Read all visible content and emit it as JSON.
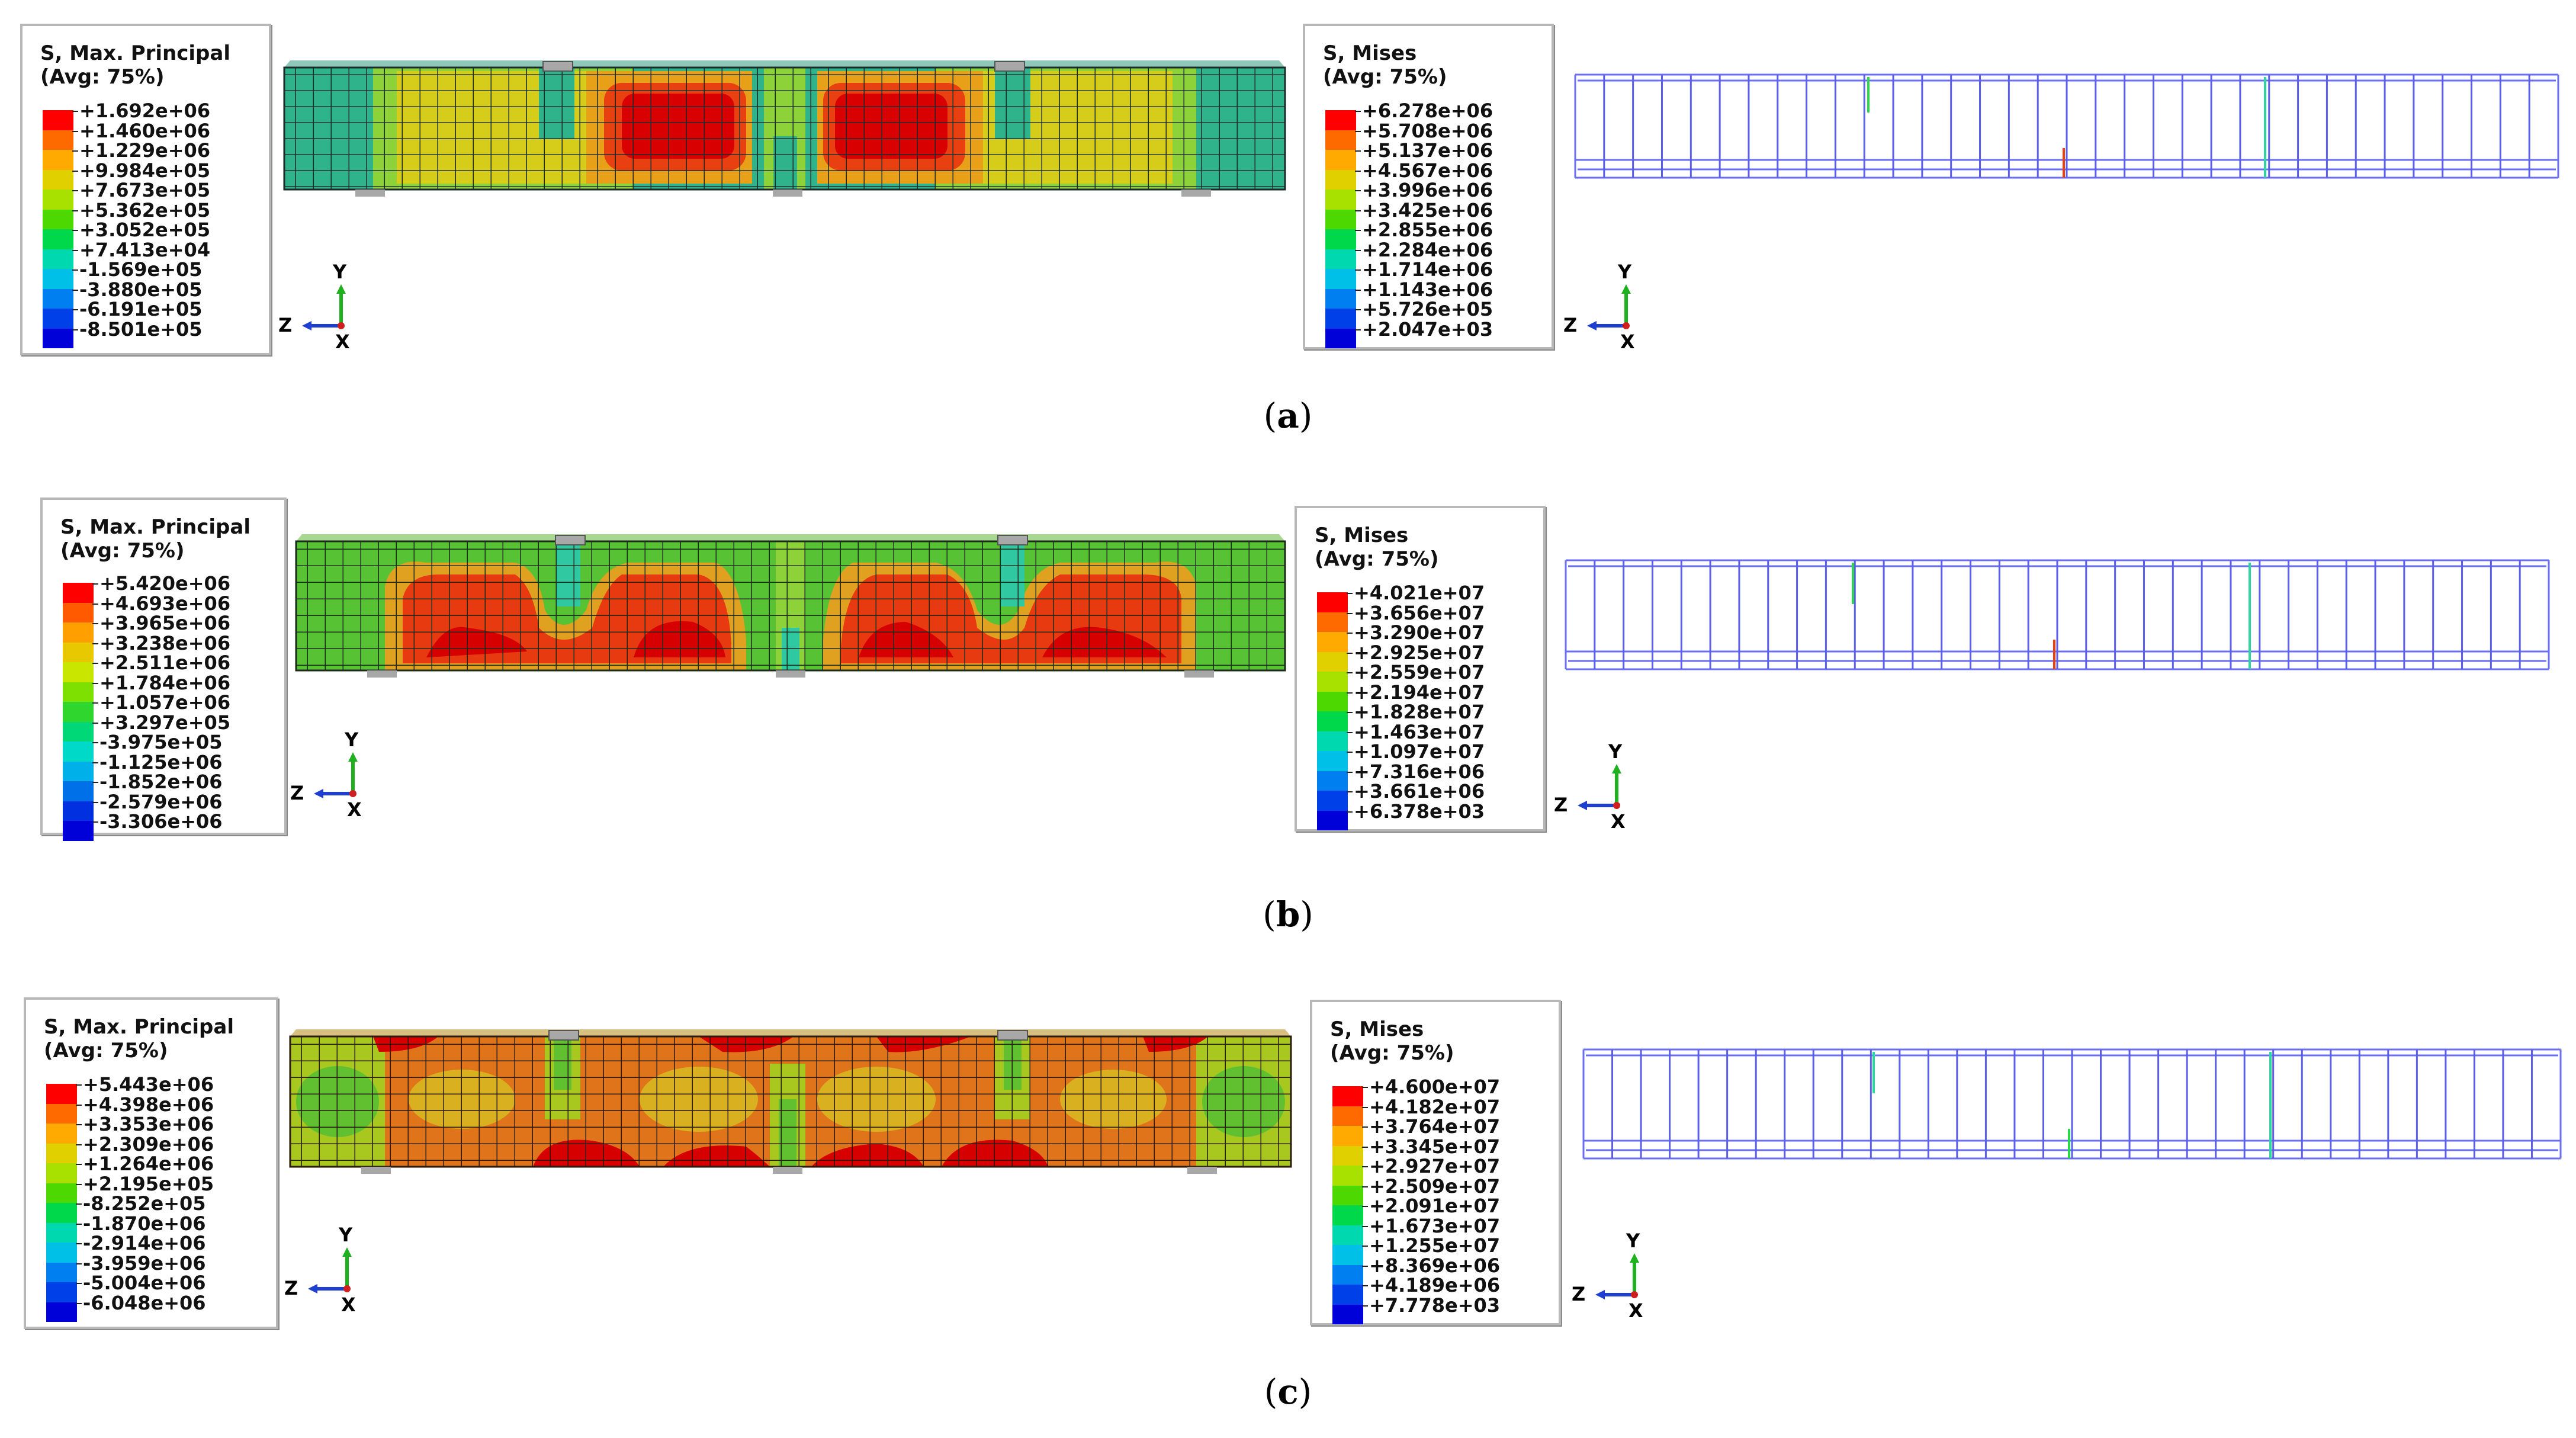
{
  "panels": [
    {
      "caption_letter": "a",
      "left_legend": {
        "title": "S, Max. Principal",
        "subtitle": "(Avg: 75%)",
        "values": [
          "+1.692e+06",
          "+1.460e+06",
          "+1.229e+06",
          "+9.984e+05",
          "+7.673e+05",
          "+5.362e+05",
          "+3.052e+05",
          "+7.413e+04",
          "-1.569e+05",
          "-3.880e+05",
          "-6.191e+05",
          "-8.501e+05"
        ]
      },
      "right_legend": {
        "title": "S, Mises",
        "subtitle": "(Avg: 75%)",
        "values": [
          "+6.278e+06",
          "+5.708e+06",
          "+5.137e+06",
          "+4.567e+06",
          "+3.996e+06",
          "+3.425e+06",
          "+2.855e+06",
          "+2.284e+06",
          "+1.714e+06",
          "+1.143e+06",
          "+5.726e+05",
          "+2.047e+03"
        ]
      },
      "axis_left": {
        "y": "Y",
        "z": "Z",
        "x": "X"
      },
      "axis_right": {
        "y": "Y",
        "z": "Z",
        "x": "X"
      }
    },
    {
      "caption_letter": "b",
      "left_legend": {
        "title": "S, Max. Principal",
        "subtitle": "(Avg: 75%)",
        "values": [
          "+5.420e+06",
          "+4.693e+06",
          "+3.965e+06",
          "+3.238e+06",
          "+2.511e+06",
          "+1.784e+06",
          "+1.057e+06",
          "+3.297e+05",
          "-3.975e+05",
          "-1.125e+06",
          "-1.852e+06",
          "-2.579e+06",
          "-3.306e+06"
        ]
      },
      "right_legend": {
        "title": "S, Mises",
        "subtitle": "(Avg: 75%)",
        "values": [
          "+4.021e+07",
          "+3.656e+07",
          "+3.290e+07",
          "+2.925e+07",
          "+2.559e+07",
          "+2.194e+07",
          "+1.828e+07",
          "+1.463e+07",
          "+1.097e+07",
          "+7.316e+06",
          "+3.661e+06",
          "+6.378e+03"
        ]
      },
      "axis_left": {
        "y": "Y",
        "z": "Z",
        "x": "X"
      },
      "axis_right": {
        "y": "Y",
        "z": "Z",
        "x": "X"
      }
    },
    {
      "caption_letter": "c",
      "left_legend": {
        "title": "S, Max. Principal",
        "subtitle": "(Avg: 75%)",
        "values": [
          "+5.443e+06",
          "+4.398e+06",
          "+3.353e+06",
          "+2.309e+06",
          "+1.264e+06",
          "+2.195e+05",
          "-8.252e+05",
          "-1.870e+06",
          "-2.914e+06",
          "-3.959e+06",
          "-5.004e+06",
          "-6.048e+06"
        ]
      },
      "right_legend": {
        "title": "S, Mises",
        "subtitle": "(Avg: 75%)",
        "values": [
          "+4.600e+07",
          "+4.182e+07",
          "+3.764e+07",
          "+3.345e+07",
          "+2.927e+07",
          "+2.509e+07",
          "+2.091e+07",
          "+1.673e+07",
          "+1.255e+07",
          "+8.369e+06",
          "+4.189e+06",
          "+7.778e+03"
        ]
      },
      "axis_left": {
        "y": "Y",
        "z": "Z",
        "x": "X"
      },
      "axis_right": {
        "y": "Y",
        "z": "Z",
        "x": "X"
      }
    }
  ],
  "colors": {
    "contour_scale": [
      "#ff0000",
      "#ff5a00",
      "#ffa000",
      "#e8c800",
      "#c8e600",
      "#7ee000",
      "#2ed62e",
      "#00d878",
      "#00d8c8",
      "#00b0e8",
      "#0070e8",
      "#0030e0",
      "#0000d8"
    ],
    "beam_a": "#2fb38a",
    "beam_b_c": "#58c235",
    "rebar": "#5a5ee8"
  }
}
